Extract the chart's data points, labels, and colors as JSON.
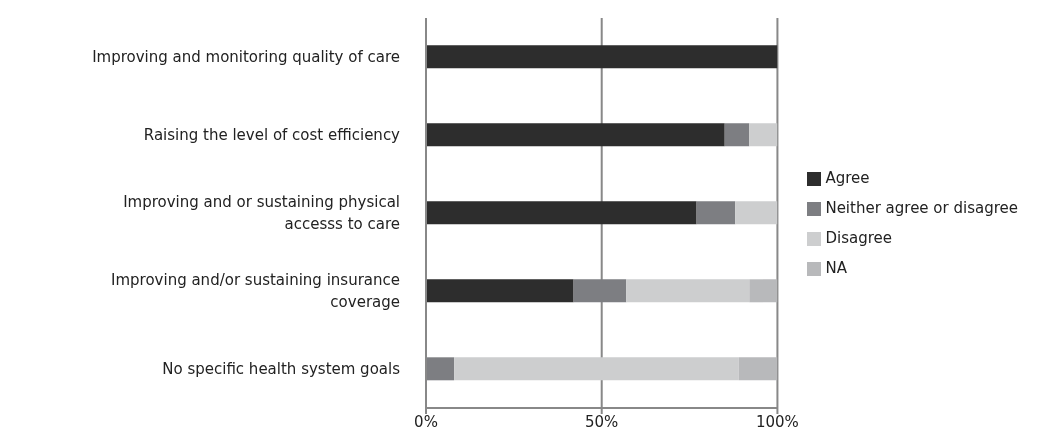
{
  "chart_data": {
    "type": "bar",
    "orientation": "horizontal",
    "stacked": true,
    "categories": [
      "Improving and monitoring quality of care",
      "Raising  the level of cost efficiency",
      "Improving and or sustaining  physical accesss to care",
      "Improving and/or sustaining  insurance coverage",
      "No specific health system goals"
    ],
    "series": [
      {
        "name": "Agree",
        "color": "#2d2d2d",
        "values": [
          100,
          85,
          77,
          42,
          0
        ]
      },
      {
        "name": "Neither agree or disagree",
        "color": "#7d7e82",
        "values": [
          0,
          7,
          11,
          15,
          8
        ]
      },
      {
        "name": "Disagree",
        "color": "#cdcecf",
        "values": [
          0,
          8,
          12,
          35,
          81
        ]
      },
      {
        "name": "NA",
        "color": "#b8b9bb",
        "values": [
          0,
          0,
          0,
          8,
          11
        ]
      }
    ],
    "xlim": [
      0,
      100
    ],
    "xticks": [
      {
        "value": 0,
        "label": "0%"
      },
      {
        "value": 50,
        "label": "50%"
      },
      {
        "value": 100,
        "label": "100%"
      }
    ],
    "grid": "x",
    "legend": "right"
  }
}
